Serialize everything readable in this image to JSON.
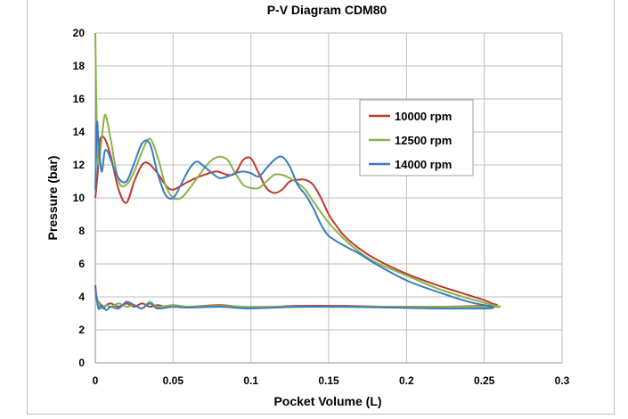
{
  "chart_data": {
    "type": "line",
    "title": "P-V Diagram CDM80",
    "xlabel": "Pocket Volume (L)",
    "ylabel": "Pressure (bar)",
    "xlim": [
      0,
      0.3
    ],
    "ylim": [
      0,
      20
    ],
    "x_ticks": [
      "0",
      "0.05",
      "0.1",
      "0.15",
      "0.2",
      "0.25",
      "0.3"
    ],
    "y_ticks": [
      "0",
      "2",
      "4",
      "6",
      "8",
      "10",
      "12",
      "14",
      "16",
      "18",
      "20"
    ],
    "grid": true,
    "legend_position": "right",
    "series": [
      {
        "name": "10000 rpm",
        "color": "#c0392b",
        "x": [
          0.0,
          0.0015,
          0.003,
          0.006,
          0.01,
          0.015,
          0.02,
          0.025,
          0.03,
          0.034,
          0.04,
          0.045,
          0.05,
          0.06,
          0.07,
          0.078,
          0.085,
          0.09,
          0.095,
          0.1,
          0.105,
          0.11,
          0.115,
          0.12,
          0.125,
          0.13,
          0.135,
          0.14,
          0.145,
          0.15,
          0.155,
          0.16,
          0.17,
          0.18,
          0.2,
          0.22,
          0.24,
          0.25,
          0.255,
          0.258,
          0.25,
          0.22,
          0.19,
          0.16,
          0.13,
          0.1,
          0.08,
          0.06,
          0.05,
          0.045,
          0.04,
          0.035,
          0.03,
          0.025,
          0.02,
          0.015,
          0.01,
          0.007,
          0.005,
          0.003,
          0.001,
          0.0
        ],
        "y": [
          10.0,
          11.5,
          13.5,
          13.6,
          12.5,
          10.5,
          9.7,
          11.0,
          12.0,
          12.1,
          11.5,
          10.8,
          10.5,
          11.0,
          11.4,
          11.6,
          11.4,
          11.5,
          12.3,
          12.4,
          11.5,
          10.6,
          10.3,
          10.5,
          11.0,
          11.1,
          11.1,
          10.8,
          10.0,
          9.0,
          8.3,
          7.7,
          6.9,
          6.3,
          5.4,
          4.7,
          4.1,
          3.8,
          3.6,
          3.5,
          3.45,
          3.4,
          3.4,
          3.45,
          3.45,
          3.35,
          3.5,
          3.4,
          3.5,
          3.4,
          3.5,
          3.4,
          3.6,
          3.4,
          3.6,
          3.4,
          3.6,
          3.5,
          3.3,
          3.6,
          3.9,
          4.7
        ]
      },
      {
        "name": "12500 rpm",
        "color": "#8ab34a",
        "x": [
          0.0,
          0.001,
          0.002,
          0.004,
          0.006,
          0.008,
          0.01,
          0.015,
          0.02,
          0.025,
          0.03,
          0.035,
          0.04,
          0.045,
          0.05,
          0.055,
          0.06,
          0.07,
          0.075,
          0.08,
          0.085,
          0.09,
          0.095,
          0.1,
          0.105,
          0.11,
          0.115,
          0.12,
          0.125,
          0.13,
          0.135,
          0.14,
          0.15,
          0.16,
          0.17,
          0.18,
          0.2,
          0.22,
          0.24,
          0.25,
          0.255,
          0.26,
          0.25,
          0.22,
          0.19,
          0.16,
          0.13,
          0.1,
          0.08,
          0.06,
          0.05,
          0.04,
          0.035,
          0.03,
          0.025,
          0.02,
          0.015,
          0.01,
          0.007,
          0.004,
          0.002,
          0.0
        ],
        "y": [
          20.0,
          14.0,
          12.0,
          13.5,
          15.0,
          14.5,
          13.5,
          11.0,
          10.8,
          11.6,
          12.8,
          13.6,
          12.5,
          10.8,
          10.0,
          10.0,
          10.5,
          11.8,
          12.3,
          12.5,
          12.3,
          11.5,
          10.8,
          10.6,
          10.6,
          11.0,
          11.4,
          11.4,
          11.2,
          10.9,
          10.5,
          9.8,
          8.5,
          7.5,
          6.7,
          6.1,
          5.3,
          4.5,
          3.9,
          3.65,
          3.5,
          3.4,
          3.4,
          3.4,
          3.4,
          3.4,
          3.4,
          3.4,
          3.45,
          3.4,
          3.5,
          3.4,
          3.7,
          3.3,
          3.5,
          3.4,
          3.6,
          3.4,
          3.5,
          3.3,
          3.7,
          4.2
        ]
      },
      {
        "name": "14000 rpm",
        "color": "#3a7cc0",
        "x": [
          0.0,
          0.001,
          0.002,
          0.004,
          0.006,
          0.008,
          0.01,
          0.015,
          0.02,
          0.025,
          0.03,
          0.035,
          0.04,
          0.045,
          0.05,
          0.055,
          0.06,
          0.065,
          0.07,
          0.075,
          0.08,
          0.085,
          0.09,
          0.095,
          0.1,
          0.105,
          0.11,
          0.115,
          0.12,
          0.125,
          0.13,
          0.135,
          0.14,
          0.145,
          0.15,
          0.16,
          0.17,
          0.18,
          0.2,
          0.22,
          0.24,
          0.25,
          0.255,
          0.252,
          0.22,
          0.19,
          0.16,
          0.13,
          0.1,
          0.08,
          0.06,
          0.05,
          0.04,
          0.035,
          0.03,
          0.025,
          0.02,
          0.015,
          0.01,
          0.007,
          0.004,
          0.002,
          0.0
        ],
        "y": [
          10.5,
          14.5,
          13.5,
          11.6,
          12.8,
          12.8,
          12.3,
          11.2,
          11.0,
          12.1,
          13.3,
          13.3,
          11.5,
          10.2,
          10.0,
          10.8,
          11.7,
          12.2,
          11.9,
          11.5,
          11.2,
          11.3,
          11.5,
          11.6,
          11.5,
          11.3,
          11.8,
          12.3,
          12.5,
          11.9,
          10.8,
          10.2,
          9.4,
          8.4,
          7.7,
          7.1,
          6.6,
          6.0,
          5.0,
          4.3,
          3.7,
          3.5,
          3.4,
          3.3,
          3.3,
          3.35,
          3.4,
          3.4,
          3.3,
          3.4,
          3.35,
          3.4,
          3.3,
          3.6,
          3.3,
          3.5,
          3.7,
          3.3,
          3.4,
          3.2,
          3.5,
          3.3,
          4.5
        ]
      }
    ]
  }
}
